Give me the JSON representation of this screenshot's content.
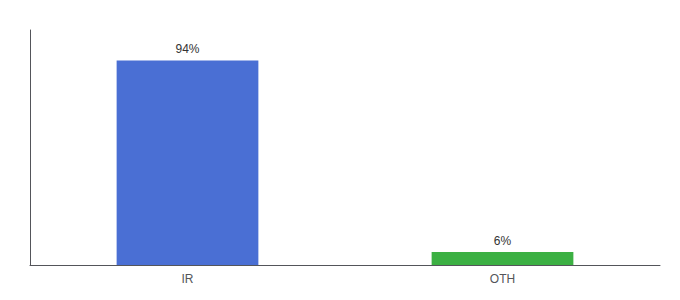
{
  "chart_data": {
    "type": "bar",
    "categories": [
      "IR",
      "OTH"
    ],
    "values": [
      94,
      6
    ],
    "value_labels": [
      "94%",
      "6%"
    ],
    "colors": [
      "#4a6fd4",
      "#3cb043"
    ],
    "ylim": [
      0,
      108
    ],
    "grid": false,
    "data_labels": true,
    "tick_labels": "x"
  }
}
